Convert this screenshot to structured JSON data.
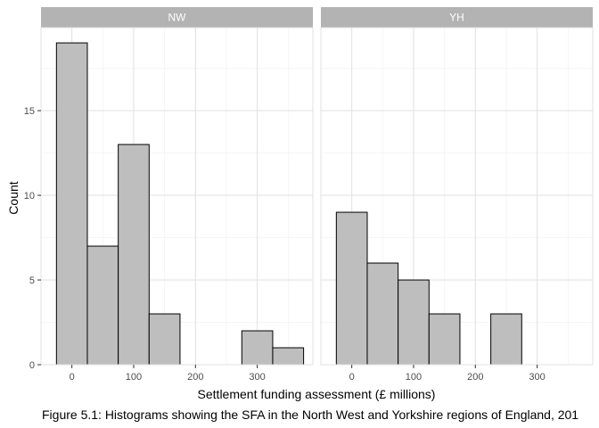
{
  "chart_data": {
    "type": "bar",
    "subtype": "faceted-histogram",
    "xlabel": "Settlement funding assessment (£ millions)",
    "ylabel": "Count",
    "xlim": [
      -50,
      390
    ],
    "ylim": [
      0,
      19.9
    ],
    "x_ticks": [
      0,
      100,
      200,
      300
    ],
    "y_ticks": [
      0,
      5,
      10,
      15
    ],
    "bin_width": 50,
    "grid": true,
    "bar_color": "#bebebe",
    "bar_edge_color": "#000000",
    "strip_color": "#b3b3b3",
    "panels": [
      {
        "strip_label": "NW",
        "bins": [
          {
            "x0": -25,
            "x1": 25,
            "count": 19
          },
          {
            "x0": 25,
            "x1": 75,
            "count": 7
          },
          {
            "x0": 75,
            "x1": 125,
            "count": 13
          },
          {
            "x0": 125,
            "x1": 175,
            "count": 3
          },
          {
            "x0": 175,
            "x1": 225,
            "count": 0
          },
          {
            "x0": 225,
            "x1": 275,
            "count": 0
          },
          {
            "x0": 275,
            "x1": 325,
            "count": 2
          },
          {
            "x0": 325,
            "x1": 375,
            "count": 1
          }
        ]
      },
      {
        "strip_label": "YH",
        "bins": [
          {
            "x0": -25,
            "x1": 25,
            "count": 9
          },
          {
            "x0": 25,
            "x1": 75,
            "count": 6
          },
          {
            "x0": 75,
            "x1": 125,
            "count": 5
          },
          {
            "x0": 125,
            "x1": 175,
            "count": 3
          },
          {
            "x0": 175,
            "x1": 225,
            "count": 0
          },
          {
            "x0": 225,
            "x1": 275,
            "count": 3
          },
          {
            "x0": 275,
            "x1": 325,
            "count": 0
          },
          {
            "x0": 325,
            "x1": 375,
            "count": 0
          }
        ]
      }
    ]
  },
  "caption": "Figure 5.1: Histograms showing the SFA in the North West and Yorkshire regions of England, 201"
}
